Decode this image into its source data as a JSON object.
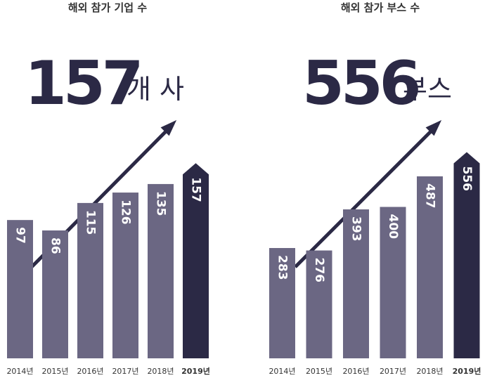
{
  "chart_data": [
    {
      "type": "bar",
      "title": "해외 참가 기업 수",
      "headline": "157",
      "headline_unit": "개 사",
      "categories": [
        "2014년",
        "2015년",
        "2016년",
        "2017년",
        "2018년",
        "2019년"
      ],
      "values": [
        97,
        86,
        115,
        126,
        135,
        157
      ],
      "colors": [
        "#6b6783",
        "#6b6783",
        "#6b6783",
        "#6b6783",
        "#6b6783",
        "#2b2945"
      ],
      "ylim": [
        -49,
        175
      ]
    },
    {
      "type": "bar",
      "title": "해외 참가 부스 수",
      "headline": "556",
      "headline_unit": "부스",
      "categories": [
        "2014년",
        "2015년",
        "2016년",
        "2017년",
        "2018년",
        "2019년"
      ],
      "values": [
        283,
        276,
        393,
        400,
        487,
        556
      ],
      "colors": [
        "#6b6783",
        "#6b6783",
        "#6b6783",
        "#6b6783",
        "#6b6783",
        "#2b2945"
      ],
      "ylim": [
        -31,
        573
      ]
    }
  ]
}
